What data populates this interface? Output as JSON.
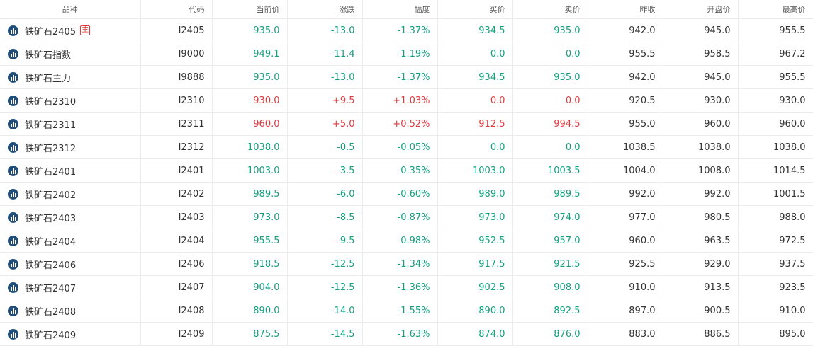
{
  "headers": [
    "品种",
    "代码",
    "当前价",
    "涨跌",
    "幅度",
    "买价",
    "卖价",
    "昨收",
    "开盘价",
    "最高价"
  ],
  "icon": "bar-chart-icon",
  "colors": {
    "up": "#e0393e",
    "down": "#149f80",
    "icon_bg": "#1f4e7a"
  },
  "rows": [
    {
      "name": "铁矿石2405",
      "badge": "主",
      "code": "I2405",
      "price": "935.0",
      "change": "-13.0",
      "pct": "-1.37%",
      "bid": "934.5",
      "ask": "935.0",
      "prev": "942.0",
      "open": "945.0",
      "high": "955.5",
      "dir": "down"
    },
    {
      "name": "铁矿石指数",
      "badge": "",
      "code": "I9000",
      "price": "949.1",
      "change": "-11.4",
      "pct": "-1.19%",
      "bid": "0.0",
      "ask": "0.0",
      "prev": "955.5",
      "open": "958.5",
      "high": "967.2",
      "dir": "down"
    },
    {
      "name": "铁矿石主力",
      "badge": "",
      "code": "I9888",
      "price": "935.0",
      "change": "-13.0",
      "pct": "-1.37%",
      "bid": "934.5",
      "ask": "935.0",
      "prev": "942.0",
      "open": "945.0",
      "high": "955.5",
      "dir": "down"
    },
    {
      "name": "铁矿石2310",
      "badge": "",
      "code": "I2310",
      "price": "930.0",
      "change": "+9.5",
      "pct": "+1.03%",
      "bid": "0.0",
      "ask": "0.0",
      "prev": "920.5",
      "open": "930.0",
      "high": "930.0",
      "dir": "up"
    },
    {
      "name": "铁矿石2311",
      "badge": "",
      "code": "I2311",
      "price": "960.0",
      "change": "+5.0",
      "pct": "+0.52%",
      "bid": "912.5",
      "ask": "994.5",
      "prev": "955.0",
      "open": "960.0",
      "high": "960.0",
      "dir": "up"
    },
    {
      "name": "铁矿石2312",
      "badge": "",
      "code": "I2312",
      "price": "1038.0",
      "change": "-0.5",
      "pct": "-0.05%",
      "bid": "0.0",
      "ask": "0.0",
      "prev": "1038.5",
      "open": "1038.0",
      "high": "1038.0",
      "dir": "down"
    },
    {
      "name": "铁矿石2401",
      "badge": "",
      "code": "I2401",
      "price": "1003.0",
      "change": "-3.5",
      "pct": "-0.35%",
      "bid": "1003.0",
      "ask": "1003.5",
      "prev": "1004.0",
      "open": "1008.0",
      "high": "1014.5",
      "dir": "down"
    },
    {
      "name": "铁矿石2402",
      "badge": "",
      "code": "I2402",
      "price": "989.5",
      "change": "-6.0",
      "pct": "-0.60%",
      "bid": "989.0",
      "ask": "989.5",
      "prev": "992.0",
      "open": "992.0",
      "high": "1001.5",
      "dir": "down"
    },
    {
      "name": "铁矿石2403",
      "badge": "",
      "code": "I2403",
      "price": "973.0",
      "change": "-8.5",
      "pct": "-0.87%",
      "bid": "973.0",
      "ask": "974.0",
      "prev": "977.0",
      "open": "980.5",
      "high": "988.0",
      "dir": "down"
    },
    {
      "name": "铁矿石2404",
      "badge": "",
      "code": "I2404",
      "price": "955.5",
      "change": "-9.5",
      "pct": "-0.98%",
      "bid": "952.5",
      "ask": "957.0",
      "prev": "960.0",
      "open": "963.5",
      "high": "972.5",
      "dir": "down"
    },
    {
      "name": "铁矿石2406",
      "badge": "",
      "code": "I2406",
      "price": "918.5",
      "change": "-12.5",
      "pct": "-1.34%",
      "bid": "917.5",
      "ask": "921.5",
      "prev": "925.5",
      "open": "929.0",
      "high": "937.5",
      "dir": "down"
    },
    {
      "name": "铁矿石2407",
      "badge": "",
      "code": "I2407",
      "price": "904.0",
      "change": "-12.5",
      "pct": "-1.36%",
      "bid": "902.5",
      "ask": "908.0",
      "prev": "910.0",
      "open": "913.5",
      "high": "923.5",
      "dir": "down"
    },
    {
      "name": "铁矿石2408",
      "badge": "",
      "code": "I2408",
      "price": "890.0",
      "change": "-14.0",
      "pct": "-1.55%",
      "bid": "890.0",
      "ask": "892.5",
      "prev": "897.0",
      "open": "900.5",
      "high": "910.0",
      "dir": "down"
    },
    {
      "name": "铁矿石2409",
      "badge": "",
      "code": "I2409",
      "price": "875.5",
      "change": "-14.5",
      "pct": "-1.63%",
      "bid": "874.0",
      "ask": "876.0",
      "prev": "883.0",
      "open": "886.5",
      "high": "895.0",
      "dir": "down"
    }
  ]
}
